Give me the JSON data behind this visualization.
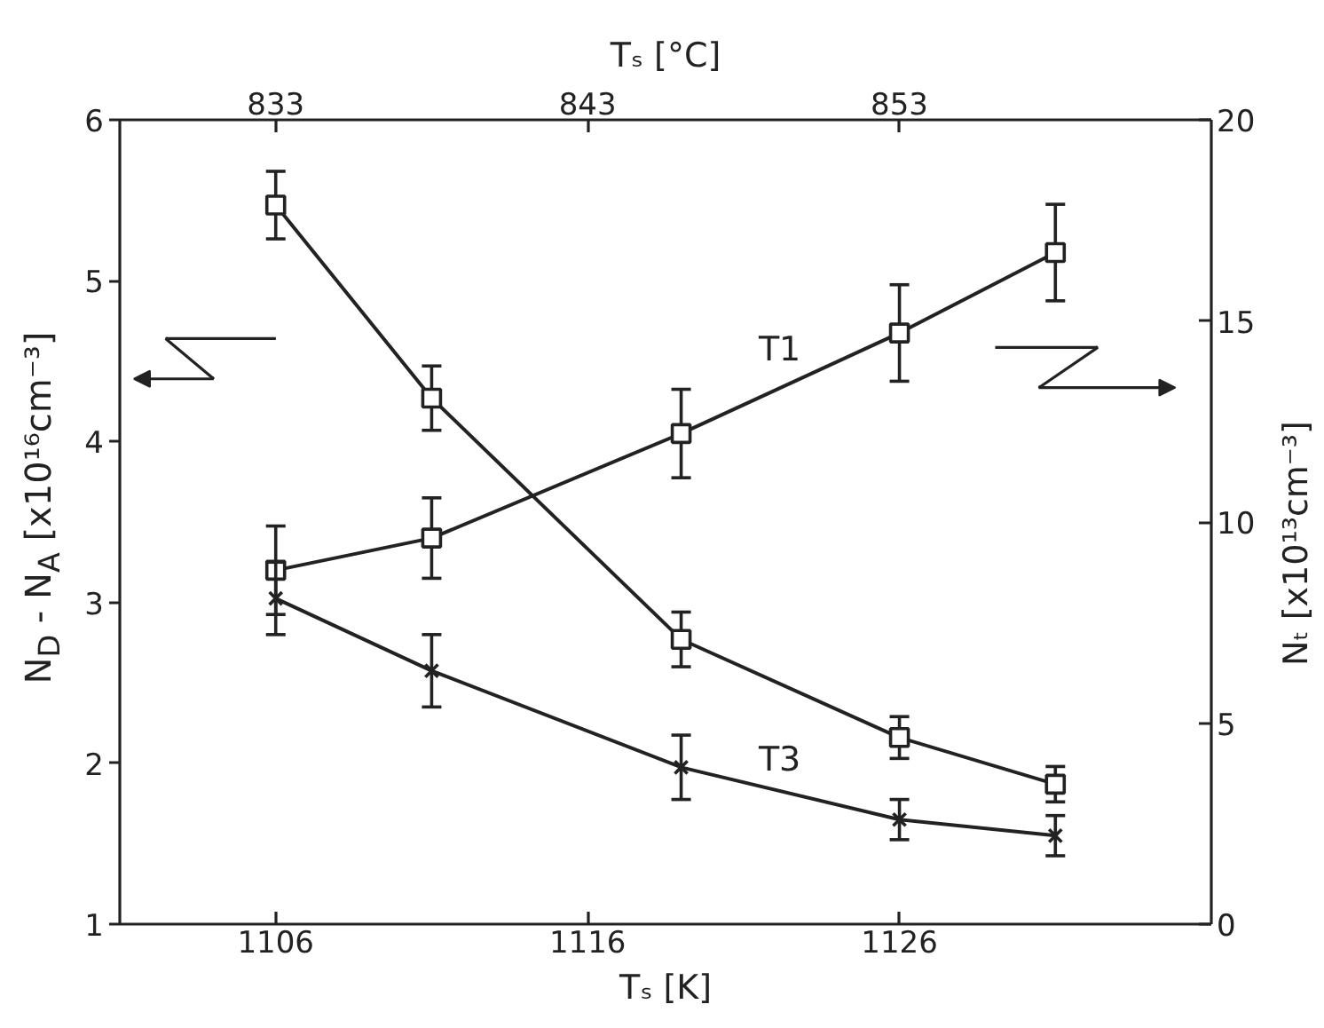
{
  "chart_data": {
    "type": "line",
    "xlabel": "Tₛ [K]",
    "x2label": "Tₛ [°C]",
    "ylabel": "N$_{D}$ - N$_{A}$ [x10¹⁶cm⁻³]",
    "y2label": "Nₜ [x10¹³cm⁻³]",
    "x": [
      1106,
      1111,
      1119,
      1126,
      1131
    ],
    "xlim": [
      1101,
      1136
    ],
    "xticks": [
      1106,
      1116,
      1126
    ],
    "x2lim": [
      828,
      863
    ],
    "x2ticks": [
      833,
      843,
      853
    ],
    "ylim": [
      1,
      6
    ],
    "yticks": [
      1,
      2,
      3,
      4,
      5,
      6
    ],
    "y2lim": [
      0,
      20
    ],
    "y2ticks": [
      0,
      5,
      10,
      15,
      20
    ],
    "series": [
      {
        "color": "#222222",
        "marker": "square",
        "values": [
          5.47,
          4.27,
          2.77,
          2.16,
          1.87
        ],
        "errors": [
          0.21,
          0.2,
          0.17,
          0.13,
          0.11
        ]
      },
      {
        "name": "T1",
        "axis": "y2",
        "color": "#222222",
        "marker": "square",
        "values": [
          8.8,
          9.6,
          12.2,
          14.7,
          16.7
        ],
        "errors": [
          1.1,
          1.0,
          1.1,
          1.2,
          1.2
        ]
      },
      {
        "name": "T3",
        "axis": "y2",
        "color": "#222222",
        "marker": "cross",
        "values": [
          8.1,
          6.3,
          3.9,
          2.6,
          2.2
        ],
        "errors": [
          0.9,
          0.9,
          0.8,
          0.5,
          0.5
        ]
      }
    ],
    "grid": false,
    "legend": false,
    "line_style": "solid"
  }
}
